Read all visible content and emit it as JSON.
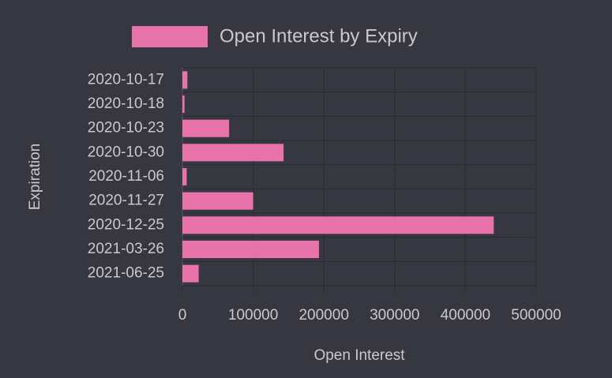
{
  "chart_data": {
    "type": "hbar",
    "categories": [
      "2020-10-17",
      "2020-10-18",
      "2020-10-23",
      "2020-10-30",
      "2020-11-06",
      "2020-11-27",
      "2020-12-25",
      "2021-03-26",
      "2021-06-25"
    ],
    "series": [
      {
        "name": "Open Interest by Expiry",
        "color": "#e872aa",
        "values": [
          7000,
          3000,
          66000,
          143000,
          6000,
          100000,
          440000,
          193000,
          23000
        ]
      }
    ],
    "xlim": [
      0,
      500000
    ],
    "xticks": [
      0,
      100000,
      200000,
      300000,
      400000,
      500000
    ],
    "x_label": "Open Interest",
    "y_label": "Expiration",
    "grid": true,
    "legend": "top"
  }
}
